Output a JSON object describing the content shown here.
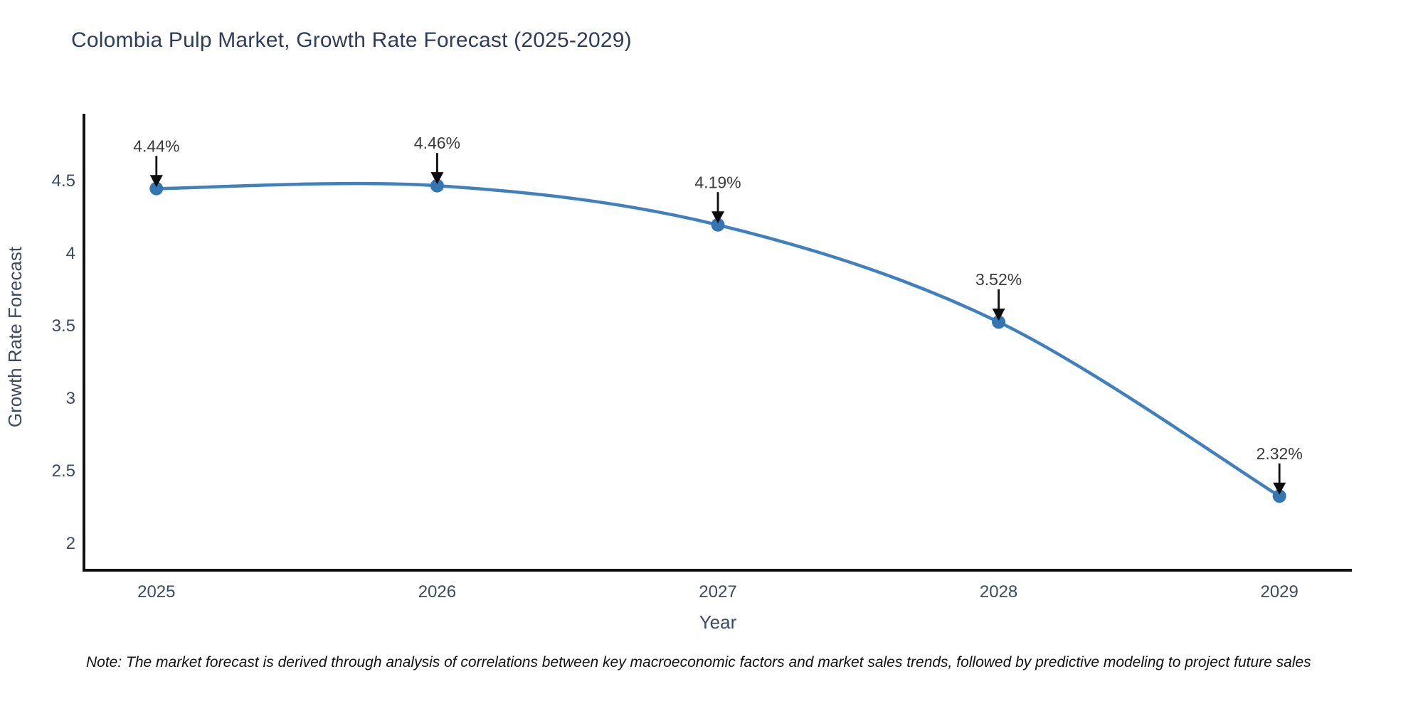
{
  "header": {
    "title": "Colombia Pulp Market, Growth Rate Forecast (2025-2029)"
  },
  "footer": {
    "note": "Note: The market forecast is derived through analysis of correlations between key macroeconomic factors and market sales trends, followed by predictive modeling to project future sales"
  },
  "chart_data": {
    "type": "line",
    "title": "Colombia Pulp Market, Growth Rate Forecast (2025-2029)",
    "xlabel": "Year",
    "ylabel": "Growth Rate Forecast",
    "x": [
      2025,
      2026,
      2027,
      2028,
      2029
    ],
    "values": [
      4.44,
      4.46,
      4.19,
      3.52,
      2.32
    ],
    "point_labels": [
      "4.44%",
      "4.46%",
      "4.19%",
      "3.52%",
      "2.32%"
    ],
    "xticks": {
      "values": [
        2025,
        2026,
        2027,
        2028,
        2029
      ],
      "labels": [
        "2025",
        "2026",
        "2027",
        "2028",
        "2029"
      ]
    },
    "yticks": {
      "values": [
        2,
        2.5,
        3,
        3.5,
        4,
        4.5
      ],
      "labels": [
        "2",
        "2.5",
        "3",
        "3.5",
        "4",
        "4.5"
      ]
    },
    "xlim": [
      2024.742,
      2029.258
    ],
    "ylim": [
      1.809,
      4.956
    ],
    "line_shape": "spline",
    "grid": false,
    "legend": false,
    "annotations_have_arrows": true,
    "colors": {
      "line": "#4080bd",
      "marker": "#3376b2",
      "axis": "#111111",
      "tick_text": "#3b4a63",
      "title_text": "#2e3d59",
      "annotation_text": "#3a3a3a",
      "arrow": "#0d0d0d",
      "note_text": "#111111",
      "background": "#ffffff"
    }
  }
}
